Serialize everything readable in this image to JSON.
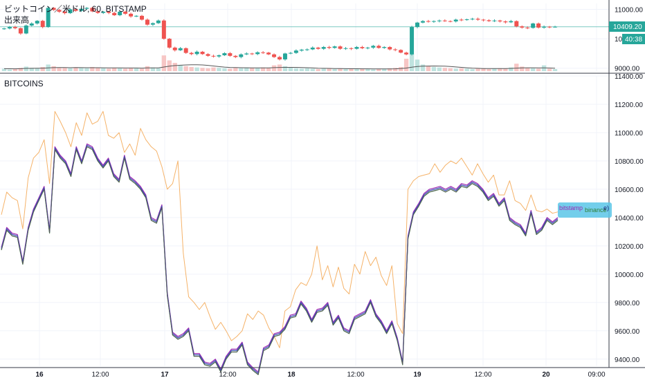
{
  "colors": {
    "up": "#26a69a",
    "down": "#ef5350",
    "up_volume": "#bfe3df",
    "down_volume": "#f7c6c5",
    "price_line": "#26a69a",
    "orange_line": "#f5b268",
    "series_blue": "#3f51b5",
    "series_purple": "#9c27b0",
    "series_green": "#4caf50",
    "series_dark": "#555555",
    "label_box": "#5bc6e8"
  },
  "top_panel": {
    "title": "ビットコイン／米ドル, 60, BITSTAMP",
    "subtitle": "出来高",
    "y_ticks": [
      "11000.00",
      "10000.00",
      "9000.00"
    ],
    "last_price": "10409.20",
    "countdown": "40:38"
  },
  "bottom_panel": {
    "title": "BITCOINS",
    "y_ticks": [
      "11400.00",
      "11200.00",
      "11000.00",
      "10800.00",
      "10600.00",
      "10400.00",
      "10200.00",
      "10000.00",
      "9800.00",
      "9600.00",
      "9400.00"
    ],
    "series_labels": [
      "bitstamp",
      "binance"
    ],
    "label_box_text": "e)"
  },
  "x_axis": {
    "ticks": [
      "16",
      "12:00",
      "17",
      "12:00",
      "18",
      "12:00",
      "19",
      "12:00",
      "20",
      "09:00"
    ]
  },
  "chart_data": [
    {
      "type": "candlestick",
      "title": "ビットコイン／米ドル, 60, BITSTAMP",
      "ylim": [
        8900,
        11200
      ],
      "closes": [
        10350,
        10400,
        10360,
        10180,
        10450,
        10520,
        10610,
        10400,
        11050,
        10980,
        10920,
        10870,
        11000,
        10950,
        11020,
        11050,
        10930,
        10880,
        10920,
        10880,
        10800,
        10920,
        10850,
        10760,
        10780,
        10650,
        10480,
        10530,
        10620,
        10000,
        9700,
        9610,
        9680,
        9520,
        9480,
        9560,
        9480,
        9420,
        9400,
        9440,
        9510,
        9420,
        9380,
        9470,
        9500,
        9480,
        9540,
        9530,
        9470,
        9380,
        9300,
        9500,
        9520,
        9600,
        9630,
        9640,
        9700,
        9660,
        9720,
        9690,
        9740,
        9660,
        9680,
        9660,
        9720,
        9680,
        9700,
        9760,
        9690,
        9720,
        9640,
        9620,
        9530,
        9470,
        10400,
        10550,
        10600,
        10580,
        10600,
        10620,
        10600,
        10590,
        10650,
        10640,
        10660,
        10680,
        10650,
        10630,
        10600,
        10620,
        10590,
        10560,
        10600,
        10420,
        10380,
        10370,
        10520,
        10380,
        10410,
        10400,
        10409
      ],
      "volume_ylim": [
        0,
        1000
      ],
      "volume": [
        60,
        40,
        50,
        80,
        110,
        80,
        70,
        100,
        160,
        120,
        90,
        80,
        70,
        90,
        80,
        70,
        100,
        80,
        70,
        60,
        80,
        70,
        60,
        80,
        70,
        60,
        120,
        90,
        70,
        380,
        260,
        200,
        150,
        120,
        100,
        90,
        80,
        70,
        90,
        80,
        70,
        60,
        80,
        70,
        90,
        80,
        70,
        90,
        80,
        140,
        160,
        120,
        90,
        70,
        60,
        70,
        60,
        50,
        60,
        70,
        50,
        60,
        50,
        60,
        50,
        60,
        50,
        40,
        60,
        50,
        70,
        80,
        100,
        300,
        420,
        280,
        160,
        120,
        100,
        90,
        80,
        70,
        60,
        70,
        60,
        50,
        60,
        70,
        50,
        60,
        70,
        60,
        90,
        180,
        110,
        80,
        70,
        60,
        140,
        60,
        50
      ],
      "volume_ma": [
        60,
        58,
        57,
        60,
        66,
        68,
        70,
        72,
        80,
        85,
        88,
        86,
        84,
        86,
        85,
        83,
        84,
        83,
        82,
        80,
        79,
        78,
        77,
        77,
        76,
        74,
        78,
        80,
        80,
        100,
        120,
        135,
        143,
        150,
        155,
        155,
        150,
        140,
        125,
        110,
        98,
        90,
        86,
        84,
        82,
        80,
        80,
        80,
        80,
        85,
        90,
        92,
        92,
        91,
        88,
        84,
        78,
        72,
        68,
        66,
        63,
        62,
        60,
        59,
        58,
        57,
        56,
        55,
        54,
        54,
        55,
        57,
        61,
        75,
        95,
        112,
        120,
        124,
        125,
        124,
        120,
        112,
        102,
        92,
        82,
        74,
        68,
        64,
        62,
        61,
        61,
        62,
        66,
        74,
        80,
        82,
        81,
        79,
        80,
        76,
        72
      ]
    },
    {
      "type": "line",
      "title": "BITCOINS",
      "ylim": [
        9350,
        11400
      ],
      "series": [
        {
          "name": "",
          "color": "#f5b268",
          "values": [
            10420,
            10580,
            10540,
            10520,
            10320,
            10680,
            10820,
            10860,
            10950,
            10640,
            11150,
            11080,
            11000,
            10900,
            11070,
            10980,
            11140,
            11060,
            11080,
            11150,
            10980,
            10960,
            11000,
            10860,
            10920,
            10840,
            11030,
            10950,
            10900,
            10870,
            10760,
            10600,
            10640,
            10800,
            10150,
            9840,
            9800,
            9750,
            9800,
            9700,
            9610,
            9660,
            9600,
            9530,
            9560,
            9600,
            9720,
            9680,
            9740,
            9710,
            9620,
            9560,
            9480,
            9740,
            9770,
            9890,
            9940,
            9920,
            10000,
            10200,
            9960,
            10060,
            9910,
            10050,
            9900,
            9860,
            10070,
            10000,
            10160,
            10060,
            10120,
            9990,
            9920,
            10060,
            9650,
            9580,
            10600,
            10660,
            10690,
            10700,
            10710,
            10780,
            10720,
            10770,
            10800,
            10780,
            10820,
            10760,
            10700,
            10780,
            10710,
            10650,
            10700,
            10560,
            10560,
            10660,
            10520,
            10500,
            10450,
            10560,
            10450,
            10440,
            10460,
            10430,
            10440
          ]
        },
        {
          "name": "binance",
          "color": "#4caf50",
          "values": [
            10170,
            10310,
            10270,
            10260,
            10070,
            10310,
            10440,
            10520,
            10600,
            10290,
            10880,
            10820,
            10780,
            10690,
            10880,
            10780,
            10900,
            10880,
            10800,
            10750,
            10800,
            10690,
            10650,
            10820,
            10670,
            10640,
            10600,
            10540,
            10380,
            10360,
            10470,
            9850,
            9570,
            9540,
            9560,
            9600,
            9420,
            9420,
            9360,
            9350,
            9380,
            9310,
            9400,
            9450,
            9450,
            9500,
            9360,
            9320,
            9290,
            9460,
            9480,
            9560,
            9570,
            9610,
            9690,
            9700,
            9790,
            9740,
            9660,
            9730,
            9740,
            9780,
            9640,
            9690,
            9600,
            9580,
            9680,
            9700,
            9720,
            9800,
            9700,
            9650,
            9580,
            9650,
            9530,
            9360,
            10250,
            10420,
            10480,
            10550,
            10580,
            10590,
            10600,
            10580,
            10600,
            10580,
            10620,
            10610,
            10640,
            10620,
            10580,
            10520,
            10550,
            10480,
            10520,
            10380,
            10350,
            10330,
            10270,
            10430,
            10280,
            10310,
            10380,
            10350,
            10380
          ]
        },
        {
          "name": "bitstamp",
          "color": "#9c27b0",
          "values": [
            10190,
            10330,
            10290,
            10280,
            10090,
            10330,
            10460,
            10540,
            10620,
            10310,
            10900,
            10840,
            10800,
            10710,
            10900,
            10800,
            10920,
            10900,
            10820,
            10770,
            10820,
            10710,
            10670,
            10840,
            10690,
            10660,
            10620,
            10560,
            10400,
            10380,
            10490,
            9870,
            9590,
            9560,
            9580,
            9620,
            9440,
            9440,
            9380,
            9370,
            9400,
            9330,
            9420,
            9470,
            9470,
            9520,
            9380,
            9340,
            9310,
            9480,
            9500,
            9580,
            9590,
            9630,
            9710,
            9720,
            9810,
            9760,
            9680,
            9750,
            9760,
            9800,
            9660,
            9710,
            9620,
            9600,
            9700,
            9720,
            9740,
            9820,
            9720,
            9670,
            9600,
            9670,
            9550,
            9380,
            10270,
            10440,
            10500,
            10570,
            10600,
            10610,
            10620,
            10600,
            10620,
            10600,
            10640,
            10630,
            10660,
            10640,
            10600,
            10540,
            10570,
            10500,
            10540,
            10400,
            10370,
            10350,
            10290,
            10450,
            10300,
            10330,
            10400,
            10370,
            10400
          ]
        }
      ]
    }
  ]
}
